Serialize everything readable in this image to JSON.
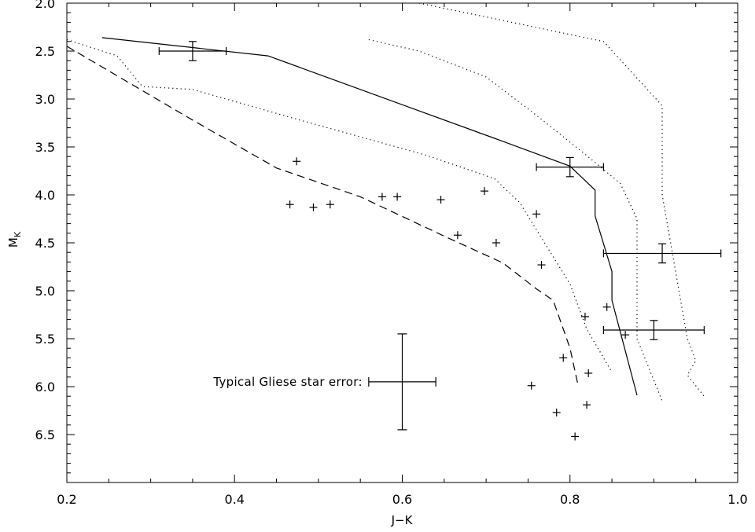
{
  "chart_data": {
    "type": "scatter",
    "title": "",
    "xlabel": "J−K",
    "ylabel": {
      "main": "M",
      "sub": "K"
    },
    "xlim": [
      0.2,
      1.0
    ],
    "ylim": [
      2.0,
      7.0
    ],
    "y_inverted": true,
    "xticks": [
      "0.2",
      "0.4",
      "0.6",
      "0.8",
      "1.0"
    ],
    "yticks": [
      "2.0",
      "2.5",
      "3.0",
      "3.5",
      "4.0",
      "4.5",
      "5.0",
      "5.5",
      "6.0",
      "6.5"
    ],
    "grid": false,
    "series": [
      {
        "style": "solid",
        "x": [
          0.242,
          0.44,
          0.71,
          0.8,
          0.83,
          0.83,
          0.85,
          0.85,
          0.88
        ],
        "y": [
          2.36,
          2.55,
          3.41,
          3.7,
          3.95,
          4.22,
          4.8,
          5.1,
          6.09
        ]
      },
      {
        "style": "dashed",
        "x": [
          0.2,
          0.35,
          0.45,
          0.55,
          0.65,
          0.72,
          0.76,
          0.78,
          0.8,
          0.81
        ],
        "y": [
          2.45,
          3.22,
          3.72,
          4.02,
          4.43,
          4.71,
          4.98,
          5.1,
          5.6,
          6.0
        ]
      },
      {
        "style": "dotted",
        "x": [
          0.2,
          0.26,
          0.29,
          0.35,
          0.47,
          0.63,
          0.71,
          0.74,
          0.8,
          0.82,
          0.84,
          0.85
        ],
        "y": [
          2.38,
          2.55,
          2.87,
          2.9,
          3.2,
          3.59,
          3.83,
          4.08,
          4.93,
          5.4,
          5.7,
          5.85
        ]
      },
      {
        "style": "dotted",
        "x": [
          0.56,
          0.62,
          0.7,
          0.76,
          0.82,
          0.86,
          0.88,
          0.88,
          0.91
        ],
        "y": [
          2.38,
          2.5,
          2.77,
          3.17,
          3.59,
          3.88,
          4.25,
          5.5,
          6.15
        ]
      },
      {
        "style": "dotted",
        "x": [
          0.62,
          0.72,
          0.84,
          0.91,
          0.91,
          0.94,
          0.95,
          0.94,
          0.96
        ],
        "y": [
          2.0,
          2.18,
          2.4,
          3.07,
          4.0,
          5.5,
          5.73,
          5.88,
          6.1
        ]
      }
    ],
    "points": [
      {
        "x": 0.474,
        "y": 3.65
      },
      {
        "x": 0.466,
        "y": 4.1
      },
      {
        "x": 0.494,
        "y": 4.13
      },
      {
        "x": 0.514,
        "y": 4.1
      },
      {
        "x": 0.576,
        "y": 4.02
      },
      {
        "x": 0.594,
        "y": 4.02
      },
      {
        "x": 0.646,
        "y": 4.05
      },
      {
        "x": 0.666,
        "y": 4.42
      },
      {
        "x": 0.698,
        "y": 3.96
      },
      {
        "x": 0.712,
        "y": 4.5
      },
      {
        "x": 0.76,
        "y": 4.2
      },
      {
        "x": 0.766,
        "y": 4.73
      },
      {
        "x": 0.844,
        "y": 5.17
      },
      {
        "x": 0.818,
        "y": 5.27
      },
      {
        "x": 0.866,
        "y": 5.46
      },
      {
        "x": 0.792,
        "y": 5.7
      },
      {
        "x": 0.754,
        "y": 5.99
      },
      {
        "x": 0.822,
        "y": 5.86
      },
      {
        "x": 0.784,
        "y": 6.27
      },
      {
        "x": 0.82,
        "y": 6.19
      },
      {
        "x": 0.806,
        "y": 6.52
      }
    ],
    "error_points": [
      {
        "x": 0.35,
        "y": 2.5,
        "xerr": 0.04,
        "yerr": 0.1
      },
      {
        "x": 0.8,
        "y": 3.71,
        "xerr": 0.04,
        "yerr": 0.1
      },
      {
        "x": 0.91,
        "y": 4.61,
        "xerr": 0.07,
        "yerr": 0.1
      },
      {
        "x": 0.9,
        "y": 5.41,
        "xerr": 0.06,
        "yerr": 0.1
      }
    ],
    "typical_error": {
      "label": "Typical Gliese star error:",
      "x": 0.6,
      "y": 5.95,
      "xerr": 0.04,
      "yerr": 0.5
    }
  }
}
